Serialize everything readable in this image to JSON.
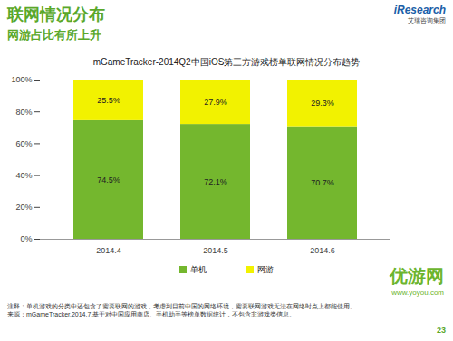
{
  "page": {
    "title": "联网情况分布",
    "subtitle": "网游占比有所上升",
    "logo": "iResearch",
    "logo_sub": "艾瑞咨询集团",
    "notes": [
      "注释：单机游戏的分类中还包含了需要联网的游戏，考虑到目前中国的网络环境，需要联网游戏无法在网络时点上都能使用。",
      "来源：mGameTracker.2014.7.基于对中国应用商店、手机助手等榜单数据统计，不包含非游戏类信息。"
    ],
    "page_number": "23",
    "watermark": "优游网",
    "watermark_sub": "www.yoyou.com"
  },
  "chart_data": {
    "type": "bar",
    "stacked": true,
    "title": "mGameTracker-2014Q2中国iOS第三方游戏榜单联网情况分布趋势",
    "categories": [
      "2014.4",
      "2014.5",
      "2014.6"
    ],
    "series": [
      {
        "name": "单机",
        "color": "#74b72e",
        "values": [
          74.5,
          72.1,
          70.7
        ],
        "value_labels": [
          "74.5%",
          "72.1%",
          "70.7%"
        ]
      },
      {
        "name": "网游",
        "color": "#f2f200",
        "values": [
          25.5,
          27.9,
          29.3
        ],
        "value_labels": [
          "25.5%",
          "27.9%",
          "29.3%"
        ]
      }
    ],
    "ylim": [
      0,
      100
    ],
    "yticks": [
      {
        "value": 0,
        "label": "0%"
      },
      {
        "value": 20,
        "label": "20%"
      },
      {
        "value": 40,
        "label": "40%"
      },
      {
        "value": 60,
        "label": "60%"
      },
      {
        "value": 80,
        "label": "80%"
      },
      {
        "value": 100,
        "label": "100%"
      }
    ],
    "grid": false,
    "data_labels": true,
    "legend": "bottom"
  }
}
